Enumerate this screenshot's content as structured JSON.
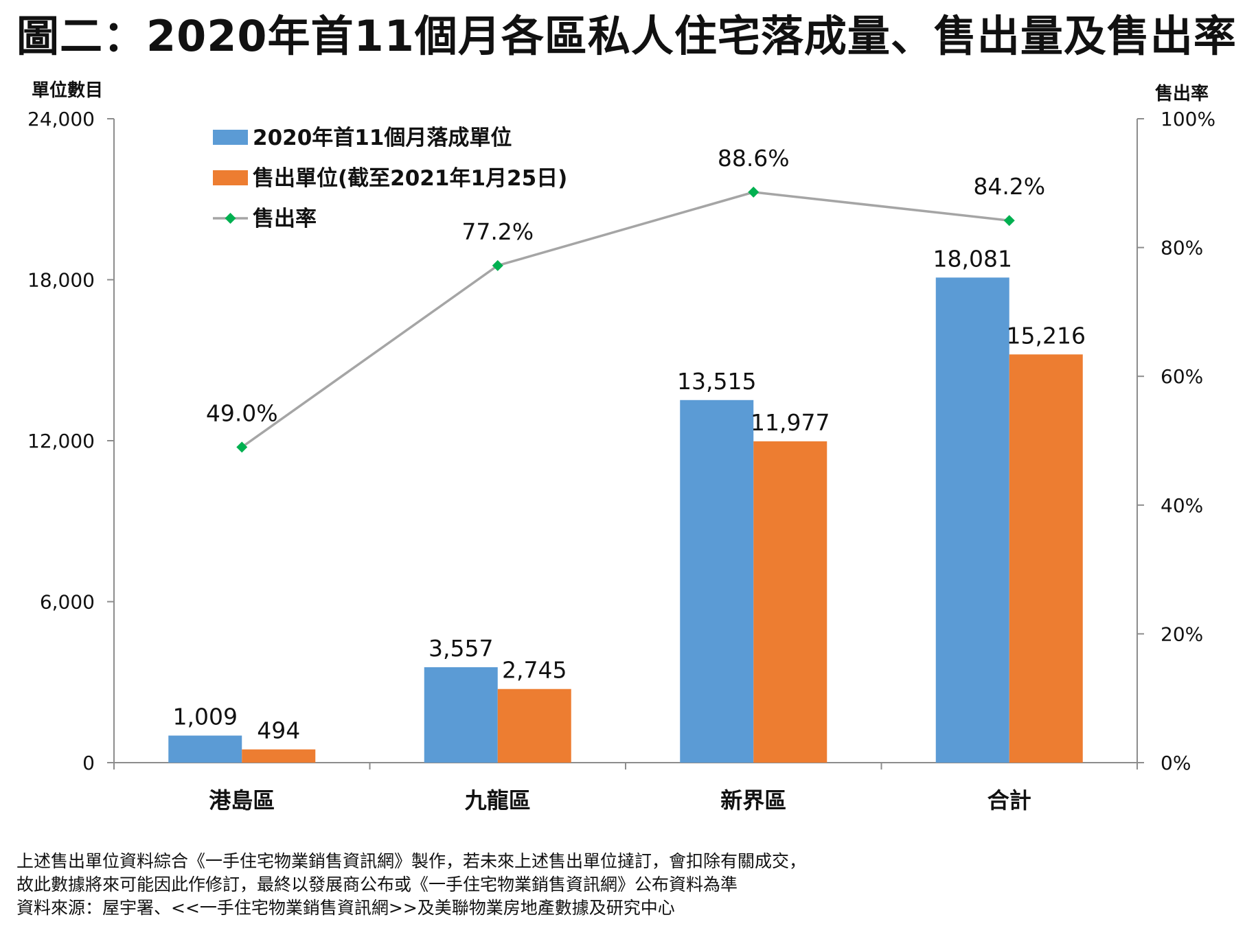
{
  "title": "圖二：2020年首11個月各區私人住宅落成量、售出量及售出率",
  "notes": [
    "上述售出單位資料綜合《一手住宅物業銷售資訊網》製作，若未來上述售出單位撻訂，會扣除有關成交，",
    "故此數據將來可能因此作修訂，最終以發展商公布或《一手住宅物業銷售資訊網》公布資料為準",
    "資料來源：屋宇署、<<一手住宅物業銷售資訊網>>及美聯物業房地產數據及研究中心"
  ],
  "chart_data": {
    "type": "bar",
    "categories": [
      "港島區",
      "九龍區",
      "新界區",
      "合計"
    ],
    "ylabel": "單位數目",
    "y2label": "售出率",
    "ylim": [
      0,
      24000
    ],
    "yticks": [
      "0",
      "6,000",
      "12,000",
      "18,000",
      "24,000"
    ],
    "ytick_values": [
      0,
      6000,
      12000,
      18000,
      24000
    ],
    "y2lim": [
      0,
      100
    ],
    "y2ticks": [
      "0%",
      "20%",
      "40%",
      "60%",
      "80%",
      "100%"
    ],
    "y2tick_values": [
      0,
      20,
      40,
      60,
      80,
      100
    ],
    "grid": false,
    "legend_position": "top-left",
    "series": [
      {
        "name": "2020年首11個月落成單位",
        "kind": "bar",
        "color": "#5b9bd5",
        "values": [
          1009,
          3557,
          13515,
          18081
        ],
        "labels": [
          "1,009",
          "3,557",
          "13,515",
          "18,081"
        ]
      },
      {
        "name": "售出單位(截至2021年1月25日)",
        "kind": "bar",
        "color": "#ed7d31",
        "values": [
          494,
          2745,
          11977,
          15216
        ],
        "labels": [
          "494",
          "2,745",
          "11,977",
          "15,216"
        ]
      },
      {
        "name": "售出率",
        "kind": "line",
        "axis": "right",
        "color": "#a5a5a5",
        "marker_color": "#00b050",
        "values": [
          49.0,
          77.2,
          88.6,
          84.2
        ],
        "labels": [
          "49.0%",
          "77.2%",
          "88.6%",
          "84.2%"
        ]
      }
    ]
  }
}
